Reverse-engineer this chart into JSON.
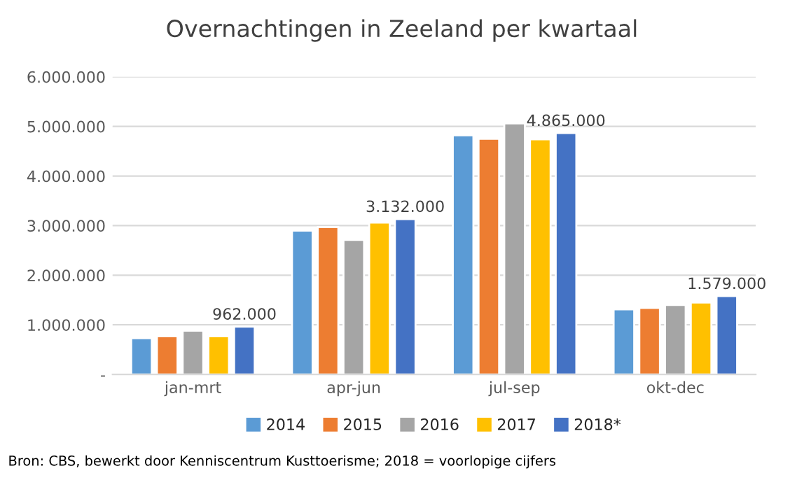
{
  "chart_data": {
    "type": "bar",
    "title": "Overnachtingen in Zeeland per kwartaal",
    "categories": [
      "jan-mrt",
      "apr-jun",
      "jul-sep",
      "okt-dec"
    ],
    "series": [
      {
        "name": "2014",
        "color": "#5b9bd5",
        "values": [
          730000,
          2900000,
          4820000,
          1310000
        ]
      },
      {
        "name": "2015",
        "color": "#ed7d31",
        "values": [
          770000,
          2970000,
          4750000,
          1340000
        ]
      },
      {
        "name": "2016",
        "color": "#a5a5a5",
        "values": [
          880000,
          2710000,
          5060000,
          1400000
        ]
      },
      {
        "name": "2017",
        "color": "#ffc000",
        "values": [
          770000,
          3060000,
          4740000,
          1450000
        ]
      },
      {
        "name": "2018*",
        "color": "#4472c4",
        "values": [
          962000,
          3132000,
          4865000,
          1579000
        ],
        "value_labels": [
          "962.000",
          "3.132.000",
          "4.865.000",
          "1.579.000"
        ]
      }
    ],
    "ylim": [
      0,
      6000000
    ],
    "yticks": [
      {
        "value": 0,
        "label": "-"
      },
      {
        "value": 1000000,
        "label": "1.000.000"
      },
      {
        "value": 2000000,
        "label": "2.000.000"
      },
      {
        "value": 3000000,
        "label": "3.000.000"
      },
      {
        "value": 4000000,
        "label": "4.000.000"
      },
      {
        "value": 5000000,
        "label": "5.000.000"
      },
      {
        "value": 6000000,
        "label": "6.000.000"
      }
    ],
    "grid": "y",
    "legend": "bottom",
    "annotations": [
      "Bron: CBS, bewerkt door Kenniscentrum Kusttoerisme; 2018 = voorlopige cijfers"
    ]
  }
}
